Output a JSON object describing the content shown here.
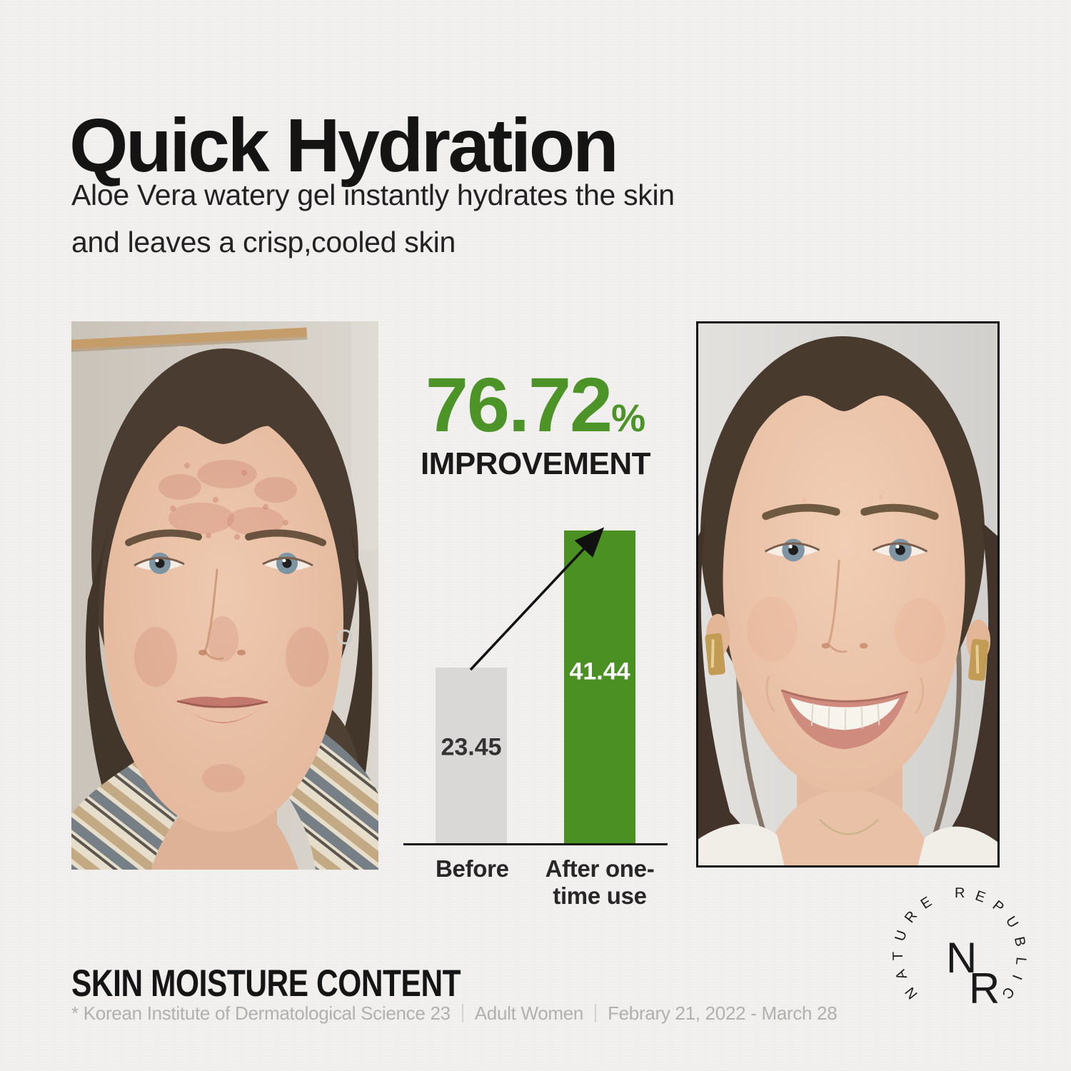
{
  "header": {
    "title": "Quick Hydration",
    "subtitle_lines": [
      "Aloe Vera watery gel instantly hydrates the skin",
      "and leaves a crisp,cooled skin"
    ]
  },
  "stat": {
    "value": "76.72",
    "unit": "%",
    "label": "IMPROVEMENT"
  },
  "chart_data": {
    "type": "bar",
    "title": "SKIN MOISTURE CONTENT",
    "categories": [
      "Before",
      "After one-time use"
    ],
    "values": [
      23.45,
      41.44
    ],
    "value_labels": [
      "23.45",
      "41.44"
    ],
    "series": [
      {
        "name": "Skin moisture content",
        "values": [
          23.45,
          41.44
        ]
      }
    ],
    "bar_colors": [
      "#d9d8d6",
      "#4b9023"
    ],
    "ylim": [
      0,
      45
    ],
    "grid": false,
    "legend": false,
    "annotations": [
      "76.72% IMPROVEMENT",
      "upward arrow from top of Before bar to top of After one-time use bar"
    ]
  },
  "section": {
    "heading": "SKIN MOISTURE CONTENT",
    "footnote_parts": [
      "* Korean Institute of Dermatological Science 23",
      "Adult Women",
      "Febrary 21, 2022 - March 28"
    ]
  },
  "logo": {
    "arc_text": "NATURE REPUBLIC",
    "monogram_n": "N",
    "monogram_r": "R"
  },
  "colors": {
    "background": "#f1f0ee",
    "accent_green": "#4b9023",
    "stat_green": "#4c9328",
    "bar_gray": "#d9d8d6",
    "heading_dark": "#151515",
    "footnote_gray": "#b2b0ad",
    "photo_border": "#101010"
  }
}
